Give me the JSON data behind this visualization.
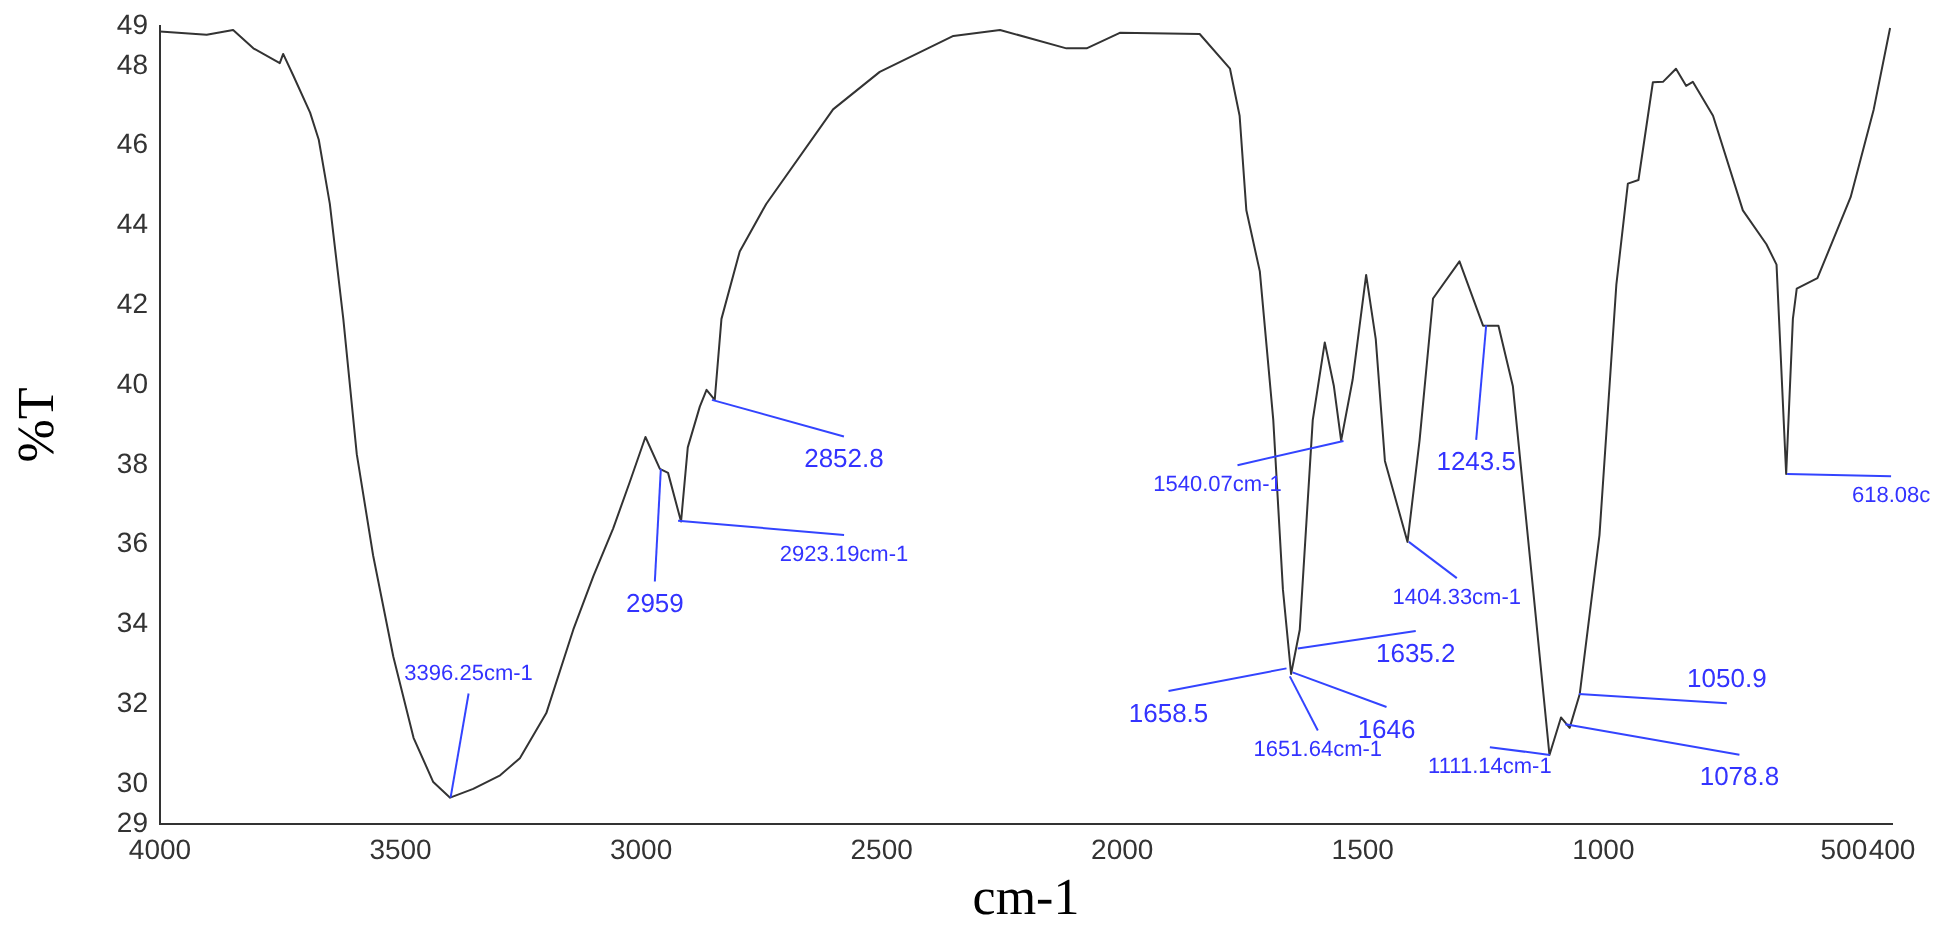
{
  "chart_data": {
    "type": "line",
    "xlabel": "cm-1",
    "ylabel": "%T",
    "x": [
      4000,
      3903,
      3848,
      3806,
      3751,
      3744,
      3723,
      3688,
      3670,
      3647,
      3619,
      3591,
      3557,
      3515,
      3473,
      3432,
      3397,
      3349,
      3293,
      3252,
      3197,
      3141,
      3099,
      3058,
      3023,
      2991,
      2961,
      2944,
      2917,
      2903,
      2878,
      2864,
      2847,
      2833,
      2795,
      2740,
      2601,
      2504,
      2351,
      2254,
      2116,
      2074,
      2005,
      1839,
      1776,
      1756,
      1742,
      1714,
      1686,
      1666,
      1649,
      1631,
      1604,
      1579,
      1560,
      1545,
      1521,
      1493,
      1473,
      1454,
      1407,
      1382,
      1354,
      1299,
      1250,
      1218,
      1188,
      1146,
      1112,
      1088,
      1070,
      1049,
      1008,
      973,
      949,
      927,
      897,
      876,
      849,
      828,
      814,
      772,
      710,
      661,
      640,
      620,
      606,
      598,
      555,
      486,
      438,
      404
    ],
    "values": [
      48.86,
      48.78,
      48.9,
      48.44,
      48.07,
      48.3,
      47.76,
      46.83,
      46.15,
      44.54,
      41.66,
      38.27,
      35.73,
      33.19,
      31.16,
      30.05,
      29.66,
      29.88,
      30.22,
      30.65,
      31.78,
      33.87,
      35.22,
      36.41,
      37.59,
      38.7,
      37.9,
      37.8,
      36.58,
      38.44,
      39.46,
      39.88,
      39.63,
      41.66,
      43.35,
      44.54,
      46.91,
      47.85,
      48.75,
      48.9,
      48.44,
      48.44,
      48.83,
      48.8,
      47.93,
      46.75,
      44.38,
      42.85,
      39.12,
      34.88,
      32.76,
      33.87,
      39.12,
      41.07,
      39.97,
      38.61,
      40.14,
      42.76,
      41.15,
      38.1,
      36.07,
      38.61,
      42.17,
      43.1,
      41.49,
      41.49,
      39.97,
      34.88,
      30.73,
      31.67,
      31.41,
      32.26,
      36.24,
      42.51,
      45.05,
      45.14,
      47.59,
      47.6,
      47.93,
      47.5,
      47.6,
      46.75,
      44.38,
      43.53,
      43.02,
      37.77,
      41.66,
      42.42,
      42.68,
      44.71,
      46.91,
      48.95
    ],
    "color": "#333333",
    "xlim": [
      4000,
      400
    ],
    "xticks": [
      4000,
      3500,
      3000,
      2500,
      2000,
      1500,
      1000,
      500,
      400
    ],
    "ylim": [
      29,
      49
    ],
    "yticks": [
      29,
      30,
      32,
      34,
      36,
      38,
      40,
      42,
      44,
      46,
      48,
      49
    ],
    "grid": false,
    "legend": false,
    "marker": "none",
    "line_style": "solid",
    "annotations": [
      {
        "text": "3396.25cm-1",
        "x": 3396,
        "y": 29.66
      },
      {
        "text": "2959",
        "x": 2959,
        "y": 37.9
      },
      {
        "text": "2852.8",
        "x": 2852.8,
        "y": 39.63
      },
      {
        "text": "2923.19cm-1",
        "x": 2923.19,
        "y": 36.6
      },
      {
        "text": "1540.07cm-1",
        "x": 1540.07,
        "y": 38.6
      },
      {
        "text": "1243.5",
        "x": 1243.5,
        "y": 41.5
      },
      {
        "text": "1404.33cm-1",
        "x": 1404.33,
        "y": 36.07
      },
      {
        "text": "1635.2",
        "x": 1635.2,
        "y": 33.4
      },
      {
        "text": "1658.5",
        "x": 1658.5,
        "y": 32.9
      },
      {
        "text": "1651.64cm-1",
        "x": 1651.64,
        "y": 32.7
      },
      {
        "text": "1646",
        "x": 1646,
        "y": 32.8
      },
      {
        "text": "1111.14cm-1",
        "x": 1111.14,
        "y": 30.73
      },
      {
        "text": "1050.9",
        "x": 1050.9,
        "y": 32.26
      },
      {
        "text": "1078.8",
        "x": 1078.8,
        "y": 31.5
      },
      {
        "text": "618.08c",
        "x": 618.08,
        "y": 37.77
      }
    ]
  }
}
